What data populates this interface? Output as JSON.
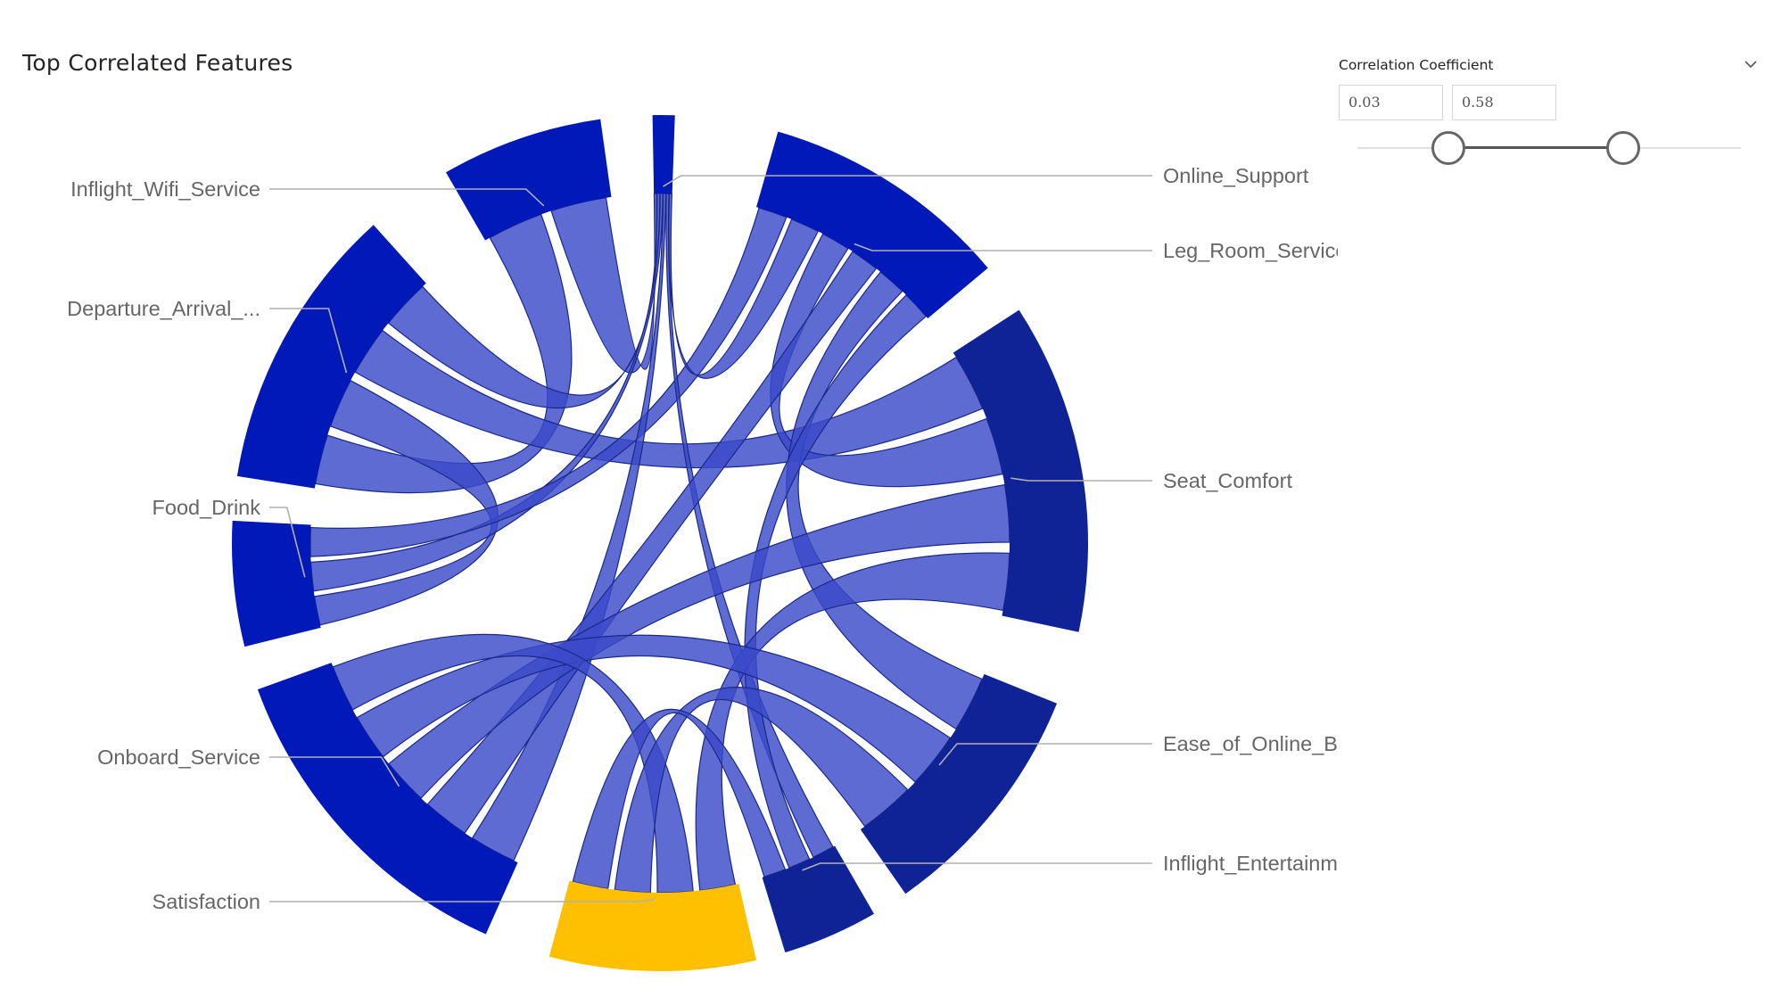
{
  "visual": {
    "title": "Top Correlated Features"
  },
  "slicer": {
    "header": "Correlation Coefficient",
    "min_value": "0.03",
    "max_value": "0.58",
    "chevron_icon": "chevron-down-icon"
  },
  "colors": {
    "node_primary": "#0019b8",
    "node_secondary": "#0f2296",
    "node_highlight": "#fec000",
    "ribbon": "#3a4bc8",
    "ribbon_stroke": "#1a2888",
    "label": "#666666",
    "leader": "#b0b0b0"
  },
  "chart_data": {
    "type": "chord",
    "title": "Top Correlated Features",
    "nodes": [
      "Online_Support",
      "Leg_Room_Service",
      "Seat_Comfort",
      "Ease_of_Online_B...",
      "Inflight_Entertainm...",
      "Satisfaction",
      "Onboard_Service",
      "Food_Drink",
      "Departure_Arrival_...",
      "Inflight_Wifi_Service"
    ],
    "highlighted_node": "Satisfaction",
    "links": [
      {
        "source": "Inflight_Wifi_Service",
        "target": "Departure_Arrival_..."
      },
      {
        "source": "Inflight_Wifi_Service",
        "target": "Online_Support"
      },
      {
        "source": "Departure_Arrival_...",
        "target": "Food_Drink"
      },
      {
        "source": "Departure_Arrival_...",
        "target": "Seat_Comfort"
      },
      {
        "source": "Departure_Arrival_...",
        "target": "Online_Support"
      },
      {
        "source": "Food_Drink",
        "target": "Online_Support"
      },
      {
        "source": "Food_Drink",
        "target": "Leg_Room_Service"
      },
      {
        "source": "Online_Support",
        "target": "Onboard_Service"
      },
      {
        "source": "Online_Support",
        "target": "Inflight_Entertainm..."
      },
      {
        "source": "Online_Support",
        "target": "Leg_Room_Service"
      },
      {
        "source": "Leg_Room_Service",
        "target": "Seat_Comfort"
      },
      {
        "source": "Leg_Room_Service",
        "target": "Onboard_Service"
      },
      {
        "source": "Leg_Room_Service",
        "target": "Ease_of_Online_B..."
      },
      {
        "source": "Leg_Room_Service",
        "target": "Inflight_Entertainm..."
      },
      {
        "source": "Seat_Comfort",
        "target": "Onboard_Service"
      },
      {
        "source": "Seat_Comfort",
        "target": "Satisfaction"
      },
      {
        "source": "Onboard_Service",
        "target": "Ease_of_Online_B..."
      },
      {
        "source": "Onboard_Service",
        "target": "Satisfaction"
      },
      {
        "source": "Ease_of_Online_B...",
        "target": "Satisfaction"
      },
      {
        "source": "Inflight_Entertainm...",
        "target": "Satisfaction"
      }
    ]
  }
}
